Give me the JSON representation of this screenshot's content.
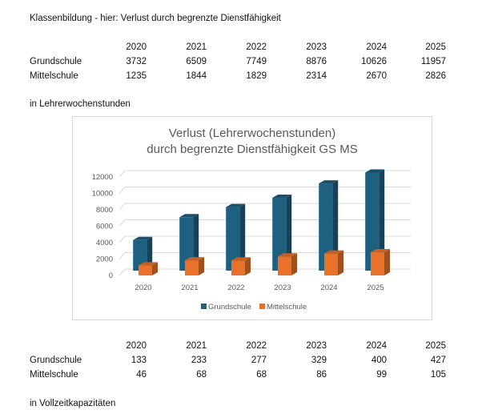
{
  "heading": "Klassenbildung - hier: Verlust durch begrenzte Dienstfähigkeit",
  "years": [
    "2020",
    "2021",
    "2022",
    "2023",
    "2024",
    "2025"
  ],
  "table_hours": {
    "rows": [
      {
        "label": "Grundschule",
        "values": [
          "3732",
          "6509",
          "7749",
          "8876",
          "10626",
          "11957"
        ]
      },
      {
        "label": "Mittelschule",
        "values": [
          "1235",
          "1844",
          "1829",
          "2314",
          "2670",
          "2826"
        ]
      }
    ],
    "caption": "in Lehrerwochenstunden"
  },
  "table_fte": {
    "rows": [
      {
        "label": "Grundschule",
        "values": [
          "133",
          "233",
          "277",
          "329",
          "400",
          "427"
        ]
      },
      {
        "label": "Mittelschule",
        "values": [
          "46",
          "68",
          "68",
          "86",
          "99",
          "105"
        ]
      }
    ],
    "caption": "in Vollzeitkapazitäten"
  },
  "chart_data": {
    "type": "bar",
    "title_line1": "Verlust (Lehrerwochenstunden)",
    "title_line2": "durch begrenzte Dienstfähigkeit GS MS",
    "categories": [
      "2020",
      "2021",
      "2022",
      "2023",
      "2024",
      "2025"
    ],
    "series": [
      {
        "name": "Grundschule",
        "values": [
          3732,
          6509,
          7749,
          8876,
          10626,
          11957
        ],
        "color": "#1f5f7f"
      },
      {
        "name": "Mittelschule",
        "values": [
          1235,
          1844,
          1829,
          2314,
          2670,
          2826
        ],
        "color": "#e8712c"
      }
    ],
    "yticks": [
      "0",
      "2000",
      "4000",
      "6000",
      "8000",
      "10000",
      "12000"
    ],
    "ylim": [
      0,
      12000
    ],
    "grid": true,
    "legend": "bottom",
    "style": "3d-column"
  }
}
